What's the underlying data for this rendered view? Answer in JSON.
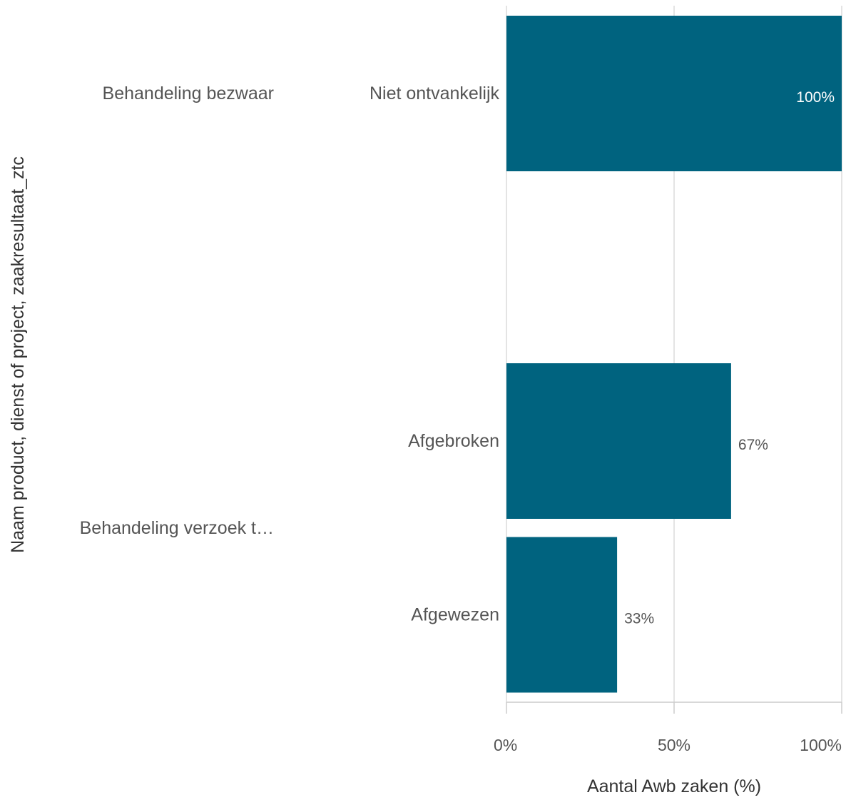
{
  "chart_data": {
    "type": "bar",
    "orientation": "horizontal",
    "xlabel": "Aantal Awb zaken (%)",
    "ylabel": "Naam product, dienst of project, zaakresultaat_ztc",
    "xlim": [
      0,
      100
    ],
    "x_ticks": [
      "0%",
      "50%",
      "100%"
    ],
    "x_tick_values": [
      0,
      50,
      100
    ],
    "grid": true,
    "bar_color": "#00637f",
    "groups": [
      {
        "label": "Behandeling bezwaar",
        "bars": [
          {
            "category": "Niet ontvankelijk",
            "value": 100,
            "label": "100%"
          }
        ]
      },
      {
        "label": "Behandeling verzoek t…",
        "bars": [
          {
            "category": "Afgebroken",
            "value": 67,
            "label": "67%"
          },
          {
            "category": "Afgewezen",
            "value": 33,
            "label": "33%"
          }
        ]
      }
    ]
  }
}
